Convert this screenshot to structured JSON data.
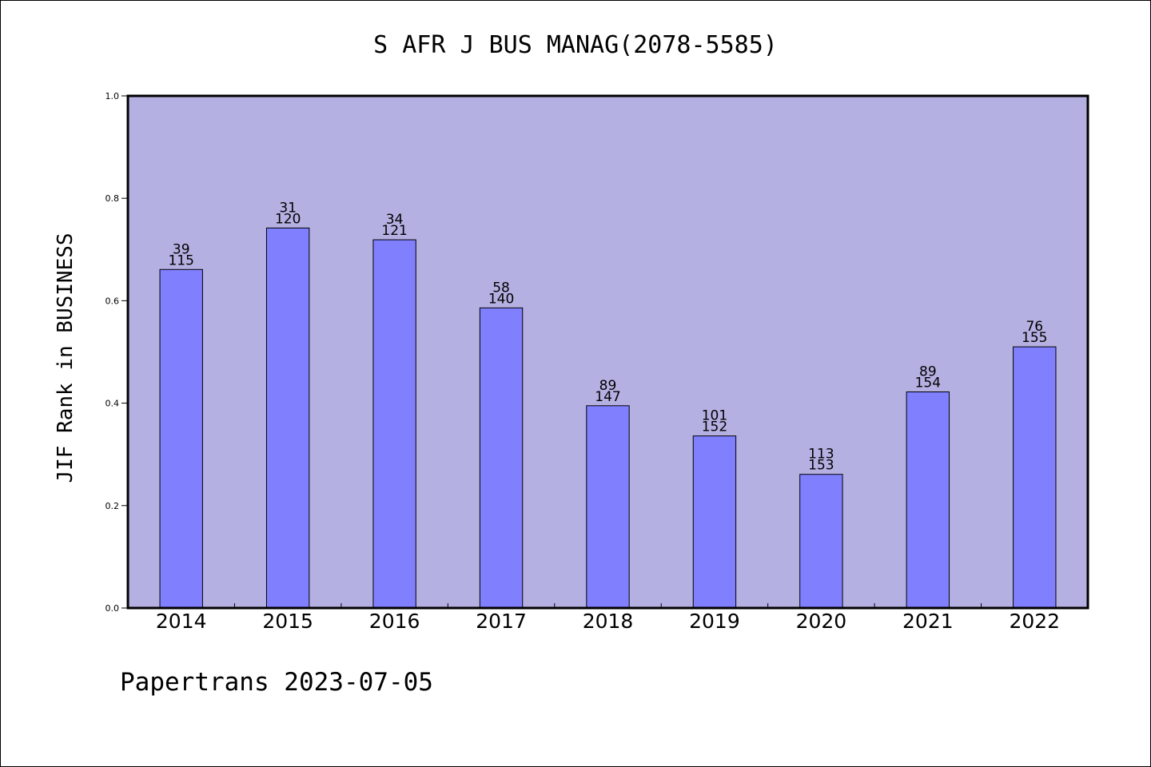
{
  "chart_data": {
    "type": "bar",
    "title": "S AFR J BUS MANAG(2078-5585)",
    "ylabel": "JIF Rank in BUSINESS",
    "xlabel": "",
    "categories": [
      "2014",
      "2015",
      "2016",
      "2017",
      "2018",
      "2019",
      "2020",
      "2021",
      "2022"
    ],
    "values": [
      0.661,
      0.742,
      0.719,
      0.586,
      0.395,
      0.336,
      0.261,
      0.422,
      0.51
    ],
    "rank": [
      "39",
      "31",
      "34",
      "58",
      "89",
      "101",
      "113",
      "89",
      "76"
    ],
    "total": [
      "115",
      "120",
      "121",
      "140",
      "147",
      "152",
      "153",
      "154",
      "155"
    ],
    "ylim": [
      0,
      1.0
    ],
    "yticks": [
      "0.0",
      "0.2",
      "0.4",
      "0.6",
      "0.8",
      "1.0"
    ],
    "grid": false,
    "footer": "Papertrans 2023-07-05",
    "colors": {
      "plot_background": "#b5b0e2",
      "bar_fill": "#8080ff",
      "bar_stroke": "#000000"
    }
  }
}
